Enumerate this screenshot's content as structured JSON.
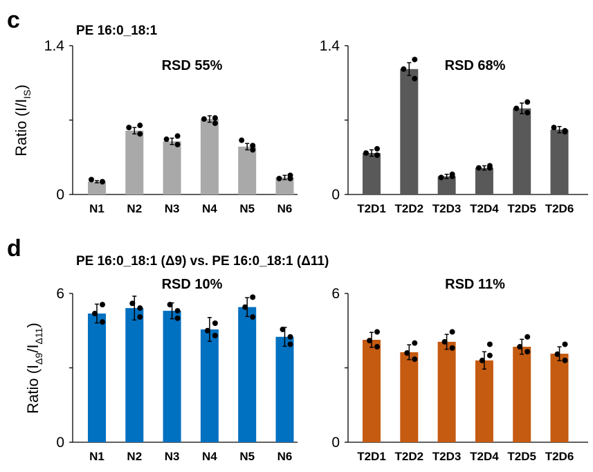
{
  "panel_labels": {
    "c": "c",
    "d": "d"
  },
  "titles": {
    "c": "PE 16:0_18:1",
    "d": "PE 16:0_18:1 (Δ9) vs. PE 16:0_18:1 (Δ11)"
  },
  "ylabels": {
    "c": "Ratio (I/I",
    "c_sub": "IS",
    "c_end": ")",
    "d": "Ratio (I",
    "d_sub1": "Δ9",
    "d_mid": "/I",
    "d_sub2": "Δ11",
    "d_end": ")"
  },
  "chart_data": [
    {
      "type": "bar",
      "panel": "c",
      "side": "left",
      "color": "#a9a9a9",
      "ylim": [
        0,
        1.4
      ],
      "yticks": [
        "0",
        "1.4"
      ],
      "annotation": "RSD 55%",
      "categories": [
        "N1",
        "N2",
        "N3",
        "N4",
        "N5",
        "N6"
      ],
      "values": [
        0.12,
        0.6,
        0.5,
        0.71,
        0.45,
        0.16
      ],
      "errors": [
        0.01,
        0.03,
        0.03,
        0.03,
        0.03,
        0.02
      ],
      "points": [
        [
          0.14,
          0.12,
          0.12
        ],
        [
          0.63,
          0.65,
          0.57
        ],
        [
          0.52,
          0.55,
          0.47
        ],
        [
          0.71,
          0.72,
          0.67
        ],
        [
          0.51,
          0.46,
          0.42
        ],
        [
          0.15,
          0.18,
          0.15
        ]
      ]
    },
    {
      "type": "bar",
      "panel": "c",
      "side": "right",
      "color": "#595959",
      "ylim": [
        0,
        1.4
      ],
      "yticks": [
        "0",
        "1.4"
      ],
      "annotation": "RSD 68%",
      "categories": [
        "T2D1",
        "T2D2",
        "T2D3",
        "T2D4",
        "T2D5",
        "T2D6"
      ],
      "values": [
        0.39,
        1.18,
        0.17,
        0.25,
        0.81,
        0.61
      ],
      "errors": [
        0.03,
        0.06,
        0.02,
        0.02,
        0.05,
        0.03
      ],
      "points": [
        [
          0.39,
          0.43,
          0.37
        ],
        [
          1.18,
          1.27,
          1.09
        ],
        [
          0.16,
          0.19,
          0.17
        ],
        [
          0.25,
          0.27,
          0.25
        ],
        [
          0.81,
          0.87,
          0.77
        ],
        [
          0.63,
          0.59,
          0.6
        ]
      ]
    },
    {
      "type": "bar",
      "panel": "d",
      "side": "left",
      "color": "#0070c0",
      "ylim": [
        0,
        6
      ],
      "yticks": [
        "0",
        "6"
      ],
      "annotation": "RSD 10%",
      "categories": [
        "N1",
        "N2",
        "N3",
        "N4",
        "N5",
        "N6"
      ],
      "values": [
        5.19,
        5.41,
        5.3,
        4.55,
        5.45,
        4.25
      ],
      "errors": [
        0.38,
        0.48,
        0.32,
        0.48,
        0.38,
        0.38
      ],
      "points": [
        [
          5.19,
          5.55,
          4.85
        ],
        [
          5.6,
          5.41,
          5.05
        ],
        [
          5.55,
          5.3,
          5.0
        ],
        [
          4.5,
          4.8,
          4.3
        ],
        [
          5.45,
          5.85,
          5.05
        ],
        [
          4.55,
          4.25,
          3.95
        ]
      ]
    },
    {
      "type": "bar",
      "panel": "d",
      "side": "right",
      "color": "#c55a11",
      "ylim": [
        0,
        6
      ],
      "yticks": [
        "0",
        "6"
      ],
      "annotation": "RSD 11%",
      "categories": [
        "T2D1",
        "T2D2",
        "T2D3",
        "T2D4",
        "T2D5",
        "T2D6"
      ],
      "values": [
        4.13,
        3.63,
        4.05,
        3.3,
        3.85,
        3.57
      ],
      "errors": [
        0.3,
        0.3,
        0.3,
        0.35,
        0.3,
        0.28
      ],
      "points": [
        [
          4.1,
          4.45,
          3.85
        ],
        [
          3.6,
          4.0,
          3.35
        ],
        [
          4.05,
          4.45,
          3.8
        ],
        [
          3.3,
          3.95,
          3.5
        ],
        [
          3.85,
          4.25,
          3.65
        ],
        [
          3.55,
          3.95,
          3.3
        ]
      ]
    }
  ]
}
